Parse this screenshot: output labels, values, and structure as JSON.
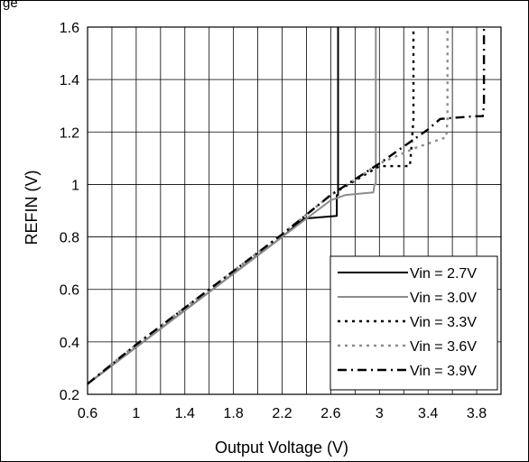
{
  "caption": "ge",
  "chart_data": {
    "type": "line",
    "xlabel": "Output Voltage (V)",
    "ylabel": "REFIN (V)",
    "xlim": [
      0.6,
      4.0
    ],
    "ylim": [
      0.2,
      1.6
    ],
    "x_ticks": [
      "0.6",
      "1",
      "1.4",
      "1.8",
      "2.2",
      "2.6",
      "3",
      "3.4",
      "3.8"
    ],
    "y_ticks": [
      "0.2",
      "0.4",
      "0.6",
      "0.8",
      "1",
      "1.2",
      "1.4",
      "1.6"
    ],
    "x_tick_values": [
      0.6,
      1.0,
      1.4,
      1.8,
      2.2,
      2.6,
      3.0,
      3.4,
      3.8
    ],
    "y_tick_values": [
      0.2,
      0.4,
      0.6,
      0.8,
      1.0,
      1.2,
      1.4,
      1.6
    ],
    "grid": true,
    "legend_position": "bottom-right",
    "series": [
      {
        "name": "Vin = 2.7V",
        "color": "#000000",
        "dash": "solid",
        "x": [
          0.6,
          1.0,
          1.4,
          1.8,
          2.2,
          2.38,
          2.65,
          2.65,
          2.66,
          2.66
        ],
        "y": [
          0.24,
          0.38,
          0.52,
          0.66,
          0.8,
          0.87,
          0.88,
          0.96,
          0.96,
          1.6
        ]
      },
      {
        "name": "Vin = 3.0V",
        "color": "#8c8c8c",
        "dash": "solid",
        "x": [
          0.6,
          1.0,
          1.4,
          1.8,
          2.2,
          2.4,
          2.6,
          2.72,
          2.95,
          2.96,
          2.97,
          2.97
        ],
        "y": [
          0.24,
          0.38,
          0.52,
          0.66,
          0.8,
          0.87,
          0.94,
          0.96,
          0.97,
          1.0,
          1.0,
          1.6
        ]
      },
      {
        "name": "Vin = 3.3V",
        "color": "#000000",
        "dash": "dot",
        "x": [
          0.6,
          1.0,
          1.4,
          1.8,
          2.2,
          2.6,
          3.0,
          3.25,
          3.26,
          3.26,
          3.28,
          3.28
        ],
        "y": [
          0.24,
          0.39,
          0.53,
          0.67,
          0.81,
          0.96,
          1.07,
          1.07,
          1.12,
          1.12,
          1.25,
          1.6
        ]
      },
      {
        "name": "Vin = 3.6V",
        "color": "#8c8c8c",
        "dash": "dot",
        "x": [
          0.6,
          1.0,
          1.4,
          1.8,
          2.2,
          2.6,
          3.0,
          3.3,
          3.55,
          3.56,
          3.56
        ],
        "y": [
          0.24,
          0.39,
          0.53,
          0.67,
          0.81,
          0.96,
          1.08,
          1.14,
          1.18,
          1.25,
          1.6
        ]
      },
      {
        "name": "Vin = 3.9V",
        "color": "#000000",
        "dash": "dashdot",
        "x": [
          0.6,
          1.0,
          1.4,
          1.8,
          2.2,
          2.6,
          3.0,
          3.4,
          3.5,
          3.78,
          3.85,
          3.86,
          3.86
        ],
        "y": [
          0.24,
          0.39,
          0.53,
          0.67,
          0.81,
          0.96,
          1.08,
          1.21,
          1.25,
          1.26,
          1.26,
          1.3,
          1.6
        ]
      }
    ]
  }
}
